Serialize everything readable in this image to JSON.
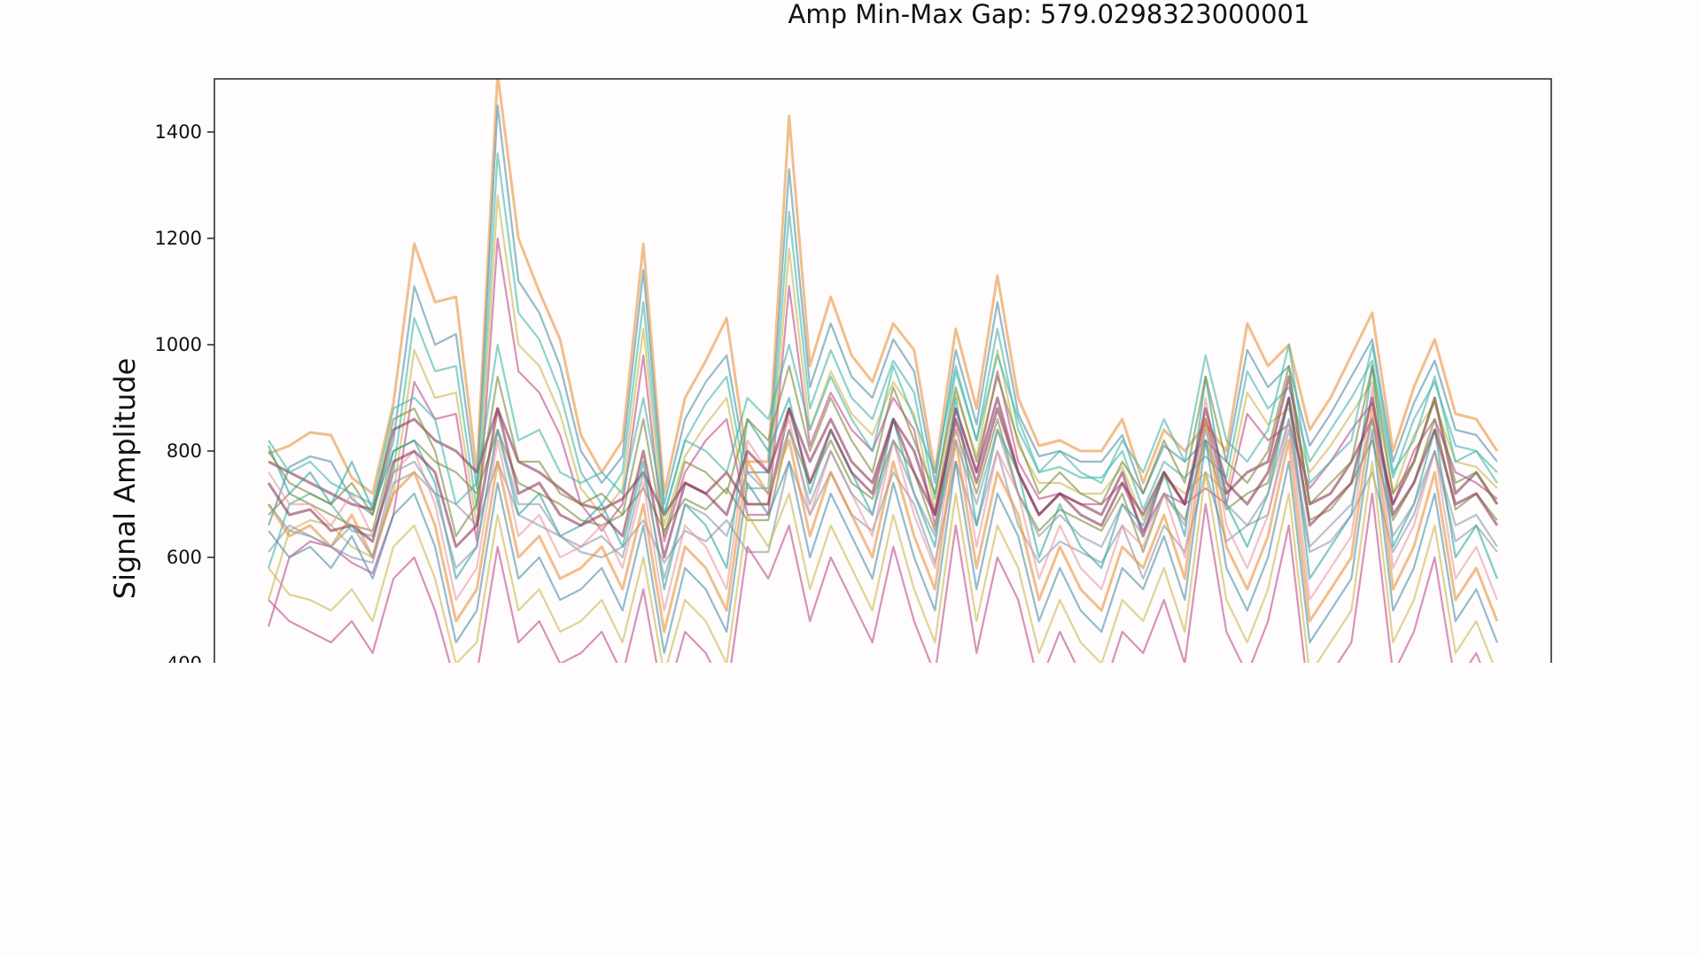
{
  "chart_data": {
    "type": "line",
    "title": "Amp Min-Max Gap: 579.0298323000001",
    "xlabel": "",
    "ylabel": "Signal Amplitude",
    "ylim": [
      400,
      1500
    ],
    "xlim": [
      -2.6,
      61.6
    ],
    "yticks": [
      400,
      600,
      800,
      1000,
      1200,
      1400
    ],
    "ytick_labels": [
      "400",
      "600",
      "800",
      "1000",
      "1200",
      "1400"
    ],
    "grid": false,
    "legend": "none",
    "n_points": 60,
    "palette": [
      "#e8953f",
      "#4a8fa8",
      "#3fb8a8",
      "#c9b84a",
      "#c04a8a",
      "#8a3a5a",
      "#7a8a3a",
      "#8a9aa8",
      "#2aa8a0",
      "#e89aa0"
    ],
    "series": [
      {
        "name": "",
        "values": [
          795,
          810,
          835,
          830,
          750,
          720,
          890,
          1190,
          1080,
          1090,
          760,
          1510,
          1200,
          1100,
          1010,
          830,
          760,
          820,
          1190,
          720,
          900,
          970,
          1050,
          780,
          780,
          1430,
          960,
          1090,
          980,
          930,
          1040,
          990,
          760,
          1030,
          880,
          1130,
          900,
          810,
          820,
          800,
          800,
          860,
          740,
          840,
          800,
          850,
          800,
          1040,
          960,
          1000,
          840,
          900,
          980,
          1060,
          800,
          920,
          1010,
          870,
          860,
          800
        ]
      },
      {
        "name": "",
        "values": [
          660,
          770,
          790,
          780,
          710,
          680,
          820,
          1110,
          1000,
          1020,
          730,
          1450,
          1120,
          1060,
          960,
          800,
          740,
          790,
          1140,
          700,
          860,
          930,
          980,
          760,
          760,
          1330,
          920,
          1040,
          940,
          900,
          1010,
          950,
          740,
          990,
          850,
          1080,
          870,
          790,
          800,
          780,
          780,
          830,
          720,
          810,
          780,
          820,
          780,
          990,
          920,
          960,
          810,
          870,
          940,
          1010,
          780,
          890,
          970,
          840,
          830,
          780
        ]
      },
      {
        "name": "",
        "values": [
          580,
          700,
          720,
          700,
          650,
          640,
          760,
          1050,
          950,
          960,
          690,
          1360,
          1060,
          1010,
          910,
          760,
          700,
          760,
          1080,
          680,
          820,
          890,
          940,
          730,
          730,
          1250,
          880,
          990,
          900,
          860,
          970,
          910,
          710,
          950,
          820,
          1030,
          840,
          760,
          770,
          750,
          750,
          800,
          690,
          780,
          750,
          790,
          750,
          950,
          880,
          920,
          780,
          840,
          900,
          970,
          750,
          860,
          930,
          810,
          800,
          760
        ]
      },
      {
        "name": "",
        "values": [
          520,
          650,
          670,
          660,
          620,
          600,
          720,
          990,
          900,
          910,
          660,
          1280,
          1000,
          960,
          870,
          730,
          680,
          730,
          1030,
          660,
          790,
          850,
          900,
          700,
          700,
          1180,
          840,
          950,
          870,
          830,
          930,
          870,
          690,
          910,
          790,
          990,
          810,
          740,
          740,
          720,
          720,
          770,
          670,
          750,
          720,
          760,
          720,
          910,
          850,
          880,
          760,
          810,
          870,
          930,
          720,
          830,
          890,
          780,
          770,
          730
        ]
      },
      {
        "name": "",
        "values": [
          470,
          600,
          630,
          620,
          590,
          570,
          680,
          930,
          860,
          870,
          630,
          1200,
          950,
          910,
          830,
          700,
          650,
          700,
          980,
          630,
          760,
          820,
          860,
          680,
          680,
          1110,
          810,
          910,
          840,
          800,
          900,
          840,
          660,
          880,
          760,
          950,
          780,
          710,
          720,
          700,
          700,
          740,
          650,
          720,
          700,
          730,
          700,
          870,
          820,
          850,
          730,
          780,
          840,
          890,
          700,
          800,
          860,
          760,
          740,
          710
        ]
      },
      {
        "name": "",
        "values": [
          780,
          760,
          740,
          720,
          700,
          690,
          840,
          860,
          820,
          800,
          760,
          880,
          780,
          760,
          730,
          700,
          690,
          710,
          760,
          680,
          740,
          720,
          760,
          700,
          700,
          880,
          780,
          860,
          780,
          740,
          860,
          800,
          680,
          880,
          760,
          900,
          760,
          680,
          720,
          700,
          680,
          760,
          640,
          760,
          700,
          860,
          720,
          760,
          780,
          940,
          700,
          720,
          780,
          860,
          700,
          780,
          900,
          720,
          760,
          700
        ]
      },
      {
        "name": "",
        "values": [
          680,
          720,
          700,
          680,
          660,
          650,
          800,
          820,
          780,
          760,
          720,
          840,
          740,
          720,
          700,
          670,
          660,
          680,
          730,
          650,
          710,
          690,
          730,
          670,
          670,
          840,
          740,
          820,
          740,
          710,
          820,
          760,
          650,
          840,
          720,
          860,
          720,
          650,
          690,
          670,
          650,
          720,
          610,
          720,
          670,
          820,
          690,
          720,
          740,
          900,
          670,
          690,
          740,
          820,
          670,
          740,
          860,
          690,
          720,
          670
        ]
      },
      {
        "name": "",
        "values": [
          610,
          660,
          640,
          620,
          600,
          590,
          740,
          760,
          720,
          700,
          660,
          780,
          680,
          660,
          640,
          610,
          600,
          620,
          670,
          590,
          650,
          630,
          670,
          610,
          610,
          780,
          680,
          760,
          680,
          650,
          760,
          700,
          590,
          780,
          660,
          800,
          660,
          590,
          630,
          610,
          590,
          660,
          560,
          660,
          610,
          760,
          630,
          660,
          680,
          840,
          610,
          630,
          680,
          760,
          610,
          680,
          800,
          630,
          660,
          610
        ]
      },
      {
        "name": "",
        "values": [
          810,
          720,
          760,
          700,
          780,
          690,
          800,
          820,
          740,
          560,
          620,
          840,
          680,
          720,
          640,
          660,
          700,
          620,
          780,
          540,
          700,
          660,
          580,
          860,
          800,
          900,
          720,
          840,
          760,
          680,
          860,
          720,
          620,
          900,
          660,
          840,
          760,
          600,
          700,
          620,
          580,
          700,
          660,
          760,
          640,
          940,
          700,
          620,
          720,
          900,
          560,
          620,
          680,
          960,
          620,
          700,
          840,
          600,
          660,
          560
        ]
      },
      {
        "name": "",
        "values": [
          760,
          700,
          700,
          660,
          720,
          640,
          760,
          800,
          700,
          520,
          580,
          820,
          640,
          680,
          600,
          620,
          660,
          580,
          740,
          500,
          660,
          620,
          540,
          820,
          760,
          860,
          680,
          800,
          720,
          640,
          820,
          680,
          580,
          860,
          620,
          800,
          720,
          560,
          660,
          580,
          540,
          660,
          620,
          720,
          600,
          900,
          660,
          580,
          680,
          860,
          520,
          580,
          640,
          920,
          580,
          660,
          800,
          560,
          620,
          520
        ]
      },
      {
        "name": "",
        "values": [
          700,
          640,
          660,
          620,
          680,
          600,
          720,
          760,
          660,
          480,
          540,
          780,
          600,
          640,
          560,
          580,
          620,
          540,
          700,
          460,
          620,
          580,
          500,
          780,
          720,
          820,
          640,
          760,
          680,
          600,
          780,
          640,
          540,
          820,
          580,
          760,
          680,
          520,
          620,
          540,
          500,
          620,
          580,
          680,
          560,
          860,
          620,
          540,
          640,
          820,
          480,
          540,
          600,
          880,
          540,
          620,
          760,
          520,
          580,
          480
        ]
      },
      {
        "name": "",
        "values": [
          650,
          600,
          620,
          580,
          640,
          560,
          680,
          720,
          620,
          440,
          500,
          740,
          560,
          600,
          520,
          540,
          580,
          500,
          660,
          420,
          580,
          540,
          460,
          740,
          680,
          780,
          600,
          720,
          640,
          560,
          740,
          600,
          500,
          780,
          540,
          720,
          640,
          480,
          580,
          500,
          460,
          580,
          540,
          640,
          520,
          820,
          580,
          500,
          600,
          780,
          440,
          500,
          560,
          840,
          500,
          580,
          720,
          480,
          540,
          440
        ]
      },
      {
        "name": "",
        "values": [
          820,
          760,
          780,
          740,
          720,
          700,
          880,
          900,
          860,
          700,
          740,
          1000,
          820,
          840,
          760,
          740,
          760,
          720,
          900,
          680,
          820,
          800,
          760,
          900,
          860,
          1000,
          840,
          940,
          860,
          800,
          960,
          860,
          760,
          960,
          820,
          980,
          860,
          760,
          800,
          760,
          740,
          820,
          760,
          860,
          780,
          980,
          820,
          780,
          840,
          1000,
          740,
          780,
          820,
          1000,
          760,
          820,
          940,
          780,
          800,
          740
        ]
      },
      {
        "name": "",
        "values": [
          580,
          530,
          520,
          500,
          540,
          480,
          620,
          660,
          560,
          400,
          440,
          680,
          500,
          540,
          460,
          480,
          520,
          440,
          600,
          380,
          520,
          480,
          400,
          680,
          620,
          720,
          540,
          660,
          580,
          500,
          680,
          540,
          440,
          720,
          480,
          660,
          580,
          420,
          520,
          440,
          400,
          520,
          480,
          580,
          460,
          760,
          520,
          440,
          540,
          720,
          380,
          440,
          500,
          780,
          440,
          520,
          660,
          420,
          480,
          380
        ]
      },
      {
        "name": "",
        "values": [
          520,
          480,
          460,
          440,
          480,
          420,
          560,
          600,
          500,
          360,
          380,
          620,
          440,
          480,
          400,
          420,
          460,
          380,
          540,
          320,
          460,
          420,
          340,
          620,
          560,
          660,
          480,
          600,
          520,
          440,
          620,
          480,
          380,
          660,
          420,
          600,
          520,
          360,
          460,
          380,
          340,
          460,
          420,
          520,
          400,
          700,
          460,
          380,
          480,
          660,
          320,
          380,
          440,
          720,
          380,
          460,
          600,
          360,
          420,
          320
        ]
      },
      {
        "name": "",
        "values": [
          740,
          680,
          690,
          650,
          660,
          630,
          780,
          800,
          760,
          620,
          660,
          880,
          720,
          740,
          680,
          660,
          680,
          640,
          800,
          600,
          740,
          720,
          680,
          800,
          760,
          880,
          740,
          840,
          760,
          720,
          860,
          760,
          680,
          860,
          740,
          880,
          760,
          680,
          720,
          680,
          660,
          740,
          680,
          760,
          700,
          880,
          740,
          700,
          760,
          900,
          660,
          700,
          740,
          900,
          680,
          740,
          840,
          700,
          720,
          660
        ]
      },
      {
        "name": "",
        "values": [
          800,
          740,
          720,
          700,
          740,
          680,
          860,
          880,
          800,
          640,
          700,
          940,
          780,
          780,
          720,
          700,
          720,
          680,
          860,
          640,
          780,
          760,
          720,
          860,
          820,
          960,
          800,
          900,
          820,
          760,
          920,
          820,
          720,
          920,
          780,
          940,
          820,
          720,
          760,
          720,
          700,
          780,
          720,
          820,
          740,
          940,
          780,
          740,
          800,
          960,
          700,
          740,
          780,
          960,
          720,
          780,
          900,
          740,
          760,
          700
        ]
      },
      {
        "name": "",
        "values": [
          700,
          650,
          640,
          620,
          660,
          600,
          760,
          780,
          720,
          580,
          620,
          840,
          700,
          700,
          640,
          620,
          640,
          600,
          760,
          560,
          700,
          680,
          640,
          760,
          720,
          840,
          700,
          800,
          720,
          680,
          820,
          720,
          640,
          820,
          700,
          840,
          720,
          640,
          680,
          640,
          620,
          700,
          640,
          720,
          660,
          840,
          700,
          660,
          720,
          860,
          620,
          660,
          700,
          860,
          640,
          700,
          800,
          660,
          680,
          620
        ]
      }
    ]
  }
}
